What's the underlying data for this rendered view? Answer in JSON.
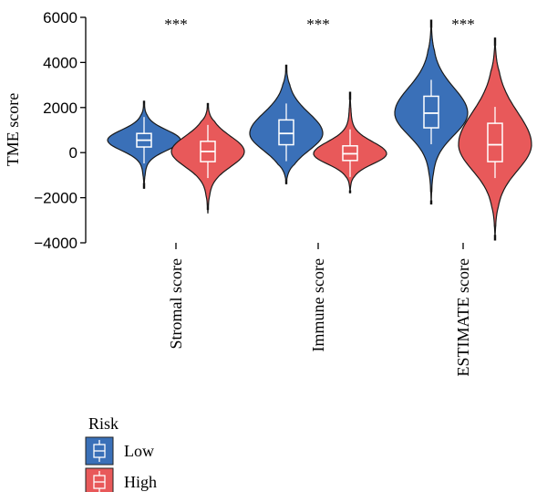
{
  "chart_data": {
    "type": "violin",
    "title": "",
    "xlabel": "",
    "ylabel": "TME score",
    "ylim": [
      -4000,
      6000
    ],
    "yticks": [
      "6000",
      "4000",
      "2000",
      "0",
      "−2000",
      "−4000"
    ],
    "categories": [
      "Stromal score",
      "Immune score",
      "ESTIMATE score"
    ],
    "significance": [
      "***",
      "***",
      "***"
    ],
    "grid": false,
    "legend": {
      "title": "Risk",
      "placement": "bottom-left"
    },
    "series": [
      {
        "name": "Low",
        "color": "#3a70b8",
        "groups": [
          {
            "min": -1600,
            "q1": 250,
            "median": 550,
            "q3": 850,
            "max": 2300
          },
          {
            "min": -1400,
            "q1": 350,
            "median": 850,
            "q3": 1450,
            "max": 3900
          },
          {
            "min": -2300,
            "q1": 1100,
            "median": 1750,
            "q3": 2500,
            "max": 5900
          }
        ]
      },
      {
        "name": "High",
        "color": "#e8595a",
        "groups": [
          {
            "min": -2700,
            "q1": -400,
            "median": 50,
            "q3": 500,
            "max": 2200
          },
          {
            "min": -1800,
            "q1": -350,
            "median": -50,
            "q3": 300,
            "max": 2700
          },
          {
            "min": -3900,
            "q1": -400,
            "median": 350,
            "q3": 1300,
            "max": 5100
          }
        ]
      }
    ]
  }
}
